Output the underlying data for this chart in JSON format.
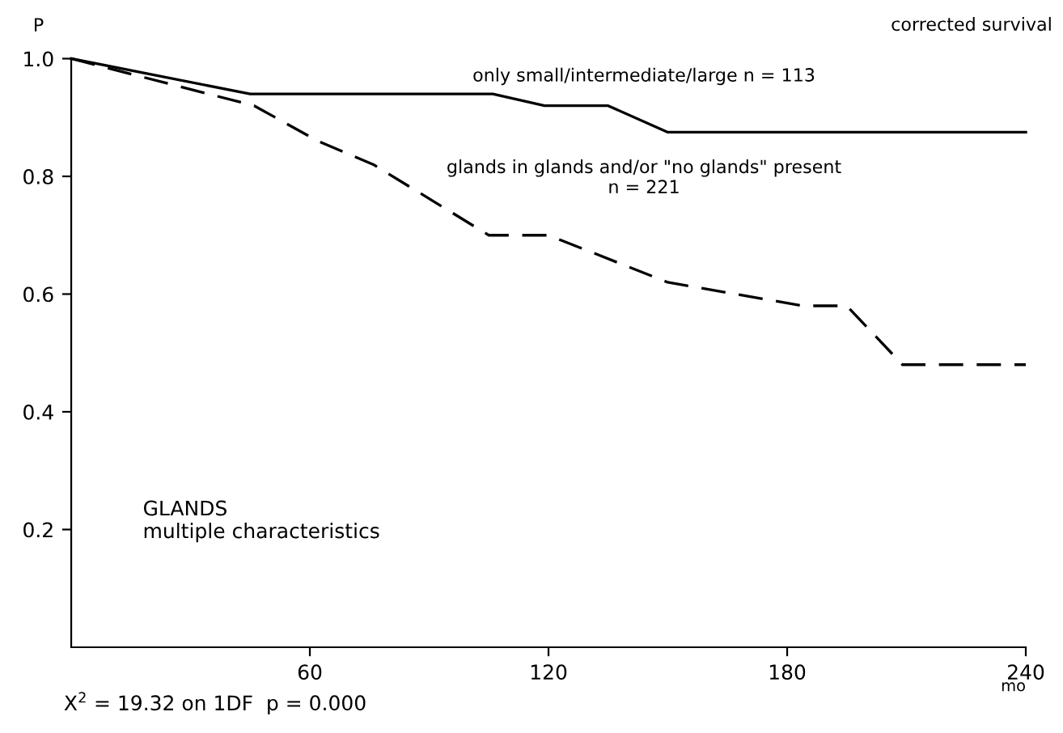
{
  "chart_data": {
    "type": "line",
    "subtitle": "corrected survival",
    "xlabel": "mo",
    "ylabel": "P",
    "x": [
      0,
      45,
      106,
      119,
      135,
      150,
      240
    ],
    "series": [
      {
        "name": "only small/intermediate/large n = 113",
        "color": "#000000",
        "line_style": "solid",
        "values": [
          1.0,
          0.94,
          0.94,
          0.92,
          0.92,
          0.875,
          0.875
        ]
      },
      {
        "name": "glands in glands and/or \"no glands\" present\nn = 221",
        "color": "#000000",
        "line_style": "dashed",
        "x": [
          0,
          46,
          62,
          76,
          105,
          120,
          150,
          184,
          195,
          209,
          240
        ],
        "values": [
          1.0,
          0.92,
          0.86,
          0.82,
          0.7,
          0.7,
          0.62,
          0.58,
          0.58,
          0.48,
          0.48
        ]
      }
    ],
    "xlim": [
      0,
      240
    ],
    "ylim": [
      0,
      1.0
    ],
    "xticks": [
      60,
      120,
      180,
      240
    ],
    "yticks": [
      0.2,
      0.4,
      0.6,
      0.8,
      {
        "value": 1,
        "label": "1.0"
      }
    ],
    "grid": false,
    "legend": false,
    "marker": "none",
    "annotations": [
      "GLANDS\nmultiple characteristics",
      "X$^{2}$ = 19.32 on 1DF  p = 0.000"
    ]
  }
}
